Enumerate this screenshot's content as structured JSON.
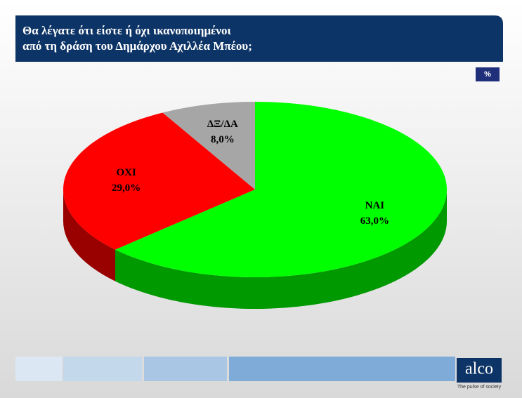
{
  "chart_data": {
    "type": "pie",
    "title": [
      "Θα λέγατε ότι είστε ή όχι ικανοποιημένοι",
      "από τη δράση του Δημάρχου Αχιλλέα Μπέου;"
    ],
    "unit_label": "%",
    "categories": [
      "ΝΑΙ",
      "ΟΧΙ",
      "ΔΞ/ΔΑ"
    ],
    "values": [
      63,
      29,
      8
    ],
    "value_labels": [
      "63,0%",
      "29,0%",
      "8,0%"
    ],
    "colors": [
      "#00ff00",
      "#ff0000",
      "#a6a6a6"
    ]
  },
  "logo": {
    "name": "alco",
    "tagline": "The pulse of society"
  }
}
